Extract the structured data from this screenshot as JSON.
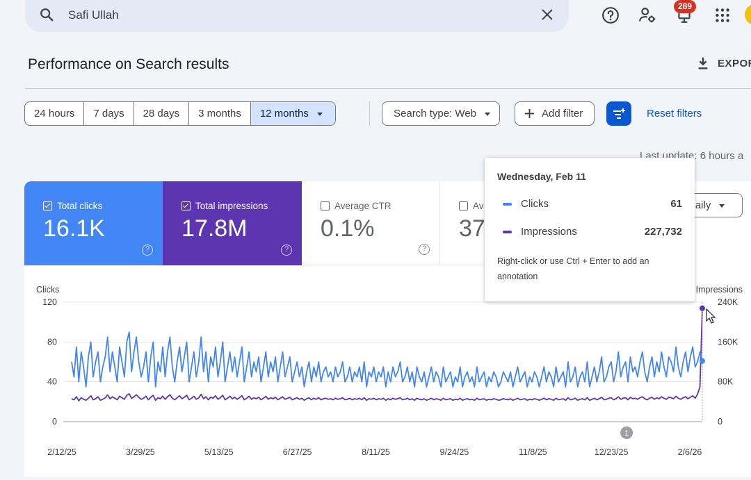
{
  "search": {
    "value": "Safi Ullah"
  },
  "notifications": {
    "count": "289"
  },
  "page": {
    "title": "Performance on Search results",
    "export_label": "EXPOR"
  },
  "ranges": [
    {
      "label": "24 hours"
    },
    {
      "label": "7 days"
    },
    {
      "label": "28 days"
    },
    {
      "label": "3 months"
    },
    {
      "label": "12 months"
    }
  ],
  "filters": {
    "search_type": "Search type: Web",
    "add_filter": "Add filter",
    "reset": "Reset filters"
  },
  "last_update": "Last update: 6 hours a",
  "metrics": [
    {
      "label": "Total clicks",
      "value": "16.1K",
      "checked": true
    },
    {
      "label": "Total impressions",
      "value": "17.8M",
      "checked": true
    },
    {
      "label": "Average CTR",
      "value": "0.1%",
      "checked": false
    },
    {
      "label": "Av",
      "value": "37.9",
      "checked": false
    }
  ],
  "granularity": "Daily",
  "tooltip": {
    "date": "Wednesday, Feb 11",
    "clicks_label": "Clicks",
    "clicks_value": "61",
    "impressions_label": "Impressions",
    "impressions_value": "227,732",
    "hint": "Right-click or use Ctrl + Enter to add an annotation"
  },
  "colors": {
    "clicks": "#4285f4",
    "impressions": "#5e35b1",
    "accent": "#0b57d0"
  },
  "chart_data": {
    "type": "line",
    "left_axis_label": "Clicks",
    "right_axis_label": "Impressions",
    "left_ticks": [
      "0",
      "40",
      "80",
      "120"
    ],
    "right_ticks": [
      "0",
      "80K",
      "160K",
      "240K"
    ],
    "left_ylim": [
      0,
      120
    ],
    "right_ylim": [
      0,
      240000
    ],
    "x_ticks": [
      "2/12/25",
      "3/29/25",
      "5/13/25",
      "6/27/25",
      "8/11/25",
      "9/24/25",
      "11/8/25",
      "12/23/25",
      "2/6/26"
    ],
    "grid": true,
    "annotation": {
      "label": "1",
      "date": "12/23/25"
    },
    "series": [
      {
        "name": "Clicks",
        "color": "#4285f4",
        "values": [
          60,
          45,
          75,
          40,
          70,
          55,
          35,
          65,
          80,
          45,
          60,
          70,
          40,
          55,
          65,
          85,
          50,
          70,
          55,
          40,
          75,
          60,
          45,
          80,
          90,
          50,
          70,
          85,
          60,
          45,
          55,
          70,
          40,
          65,
          80,
          35,
          60,
          50,
          75,
          45,
          70,
          85,
          55,
          40,
          60,
          75,
          50,
          65,
          80,
          40,
          55,
          70,
          45,
          60,
          85,
          50,
          70,
          40,
          65,
          55,
          75,
          45,
          60,
          80,
          40,
          55,
          70,
          50,
          65,
          45,
          60,
          75,
          40,
          55,
          70,
          45,
          60,
          50,
          65,
          40,
          55,
          70,
          45,
          60,
          50,
          65,
          40,
          55,
          70,
          45,
          55,
          65,
          40,
          50,
          60,
          45,
          55,
          35,
          50,
          60,
          40,
          55,
          45,
          60,
          40,
          50,
          55,
          45,
          50,
          40,
          55,
          45,
          50,
          60,
          40,
          45,
          55,
          40,
          50,
          45,
          55,
          40,
          60,
          35,
          50,
          45,
          55,
          40,
          50,
          45,
          55,
          35,
          50,
          40,
          55,
          45,
          50,
          60,
          40,
          45,
          55,
          40,
          50,
          35,
          55,
          45,
          40,
          50,
          35,
          45,
          55,
          40,
          50,
          45,
          35,
          55,
          40,
          45,
          50,
          35,
          45,
          40,
          55,
          35,
          45,
          50,
          40,
          45,
          35,
          55,
          40,
          45,
          50,
          35,
          45,
          40,
          50,
          45,
          35,
          40,
          50,
          45,
          40,
          50,
          35,
          45,
          55,
          40,
          45,
          50,
          35,
          45,
          40,
          50,
          45,
          35,
          45,
          55,
          40,
          50,
          45,
          35,
          55,
          40,
          45,
          50,
          35,
          60,
          40,
          45,
          55,
          35,
          45,
          50,
          40,
          60,
          35,
          45,
          55,
          40,
          50,
          65,
          40,
          45,
          55,
          60,
          40,
          50,
          70,
          45,
          55,
          60,
          40,
          65,
          50,
          55,
          45,
          60,
          70,
          50,
          40,
          55,
          65,
          45,
          60,
          50,
          70,
          55,
          45,
          65,
          60,
          50,
          75,
          55,
          45,
          60,
          70,
          50,
          65,
          75,
          55,
          60,
          70,
          61
        ]
      },
      {
        "name": "Impressions",
        "color": "#5e35b1",
        "values": [
          46000,
          44000,
          50000,
          42000,
          48000,
          45000,
          43000,
          47000,
          52000,
          44000,
          46000,
          50000,
          43000,
          45000,
          48000,
          54000,
          46000,
          50000,
          47000,
          44000,
          51000,
          48000,
          45000,
          53000,
          56000,
          47000,
          50000,
          54000,
          49000,
          45000,
          47000,
          51000,
          44000,
          49000,
          53000,
          43000,
          48000,
          46000,
          51000,
          45000,
          50000,
          54000,
          47000,
          44000,
          48000,
          52000,
          46000,
          49000,
          53000,
          44000,
          47000,
          51000,
          45000,
          48000,
          55000,
          46000,
          50000,
          44000,
          49000,
          47000,
          52000,
          45000,
          48000,
          53000,
          44000,
          47000,
          51000,
          46000,
          49000,
          45000,
          48000,
          52000,
          44000,
          47000,
          51000,
          45000,
          48000,
          46000,
          49000,
          44000,
          47000,
          51000,
          45000,
          48000,
          46000,
          49000,
          44000,
          47000,
          50000,
          45000,
          47000,
          49000,
          44000,
          46000,
          48000,
          45000,
          47000,
          43000,
          46000,
          48000,
          44000,
          47000,
          45000,
          48000,
          44000,
          46000,
          47000,
          45000,
          46000,
          44000,
          47000,
          45000,
          46000,
          48000,
          44000,
          45000,
          47000,
          44000,
          46000,
          45000,
          47000,
          44000,
          48000,
          43000,
          46000,
          45000,
          47000,
          44000,
          46000,
          45000,
          47000,
          43000,
          46000,
          44000,
          47000,
          45000,
          46000,
          48000,
          44000,
          45000,
          47000,
          44000,
          46000,
          43000,
          47000,
          45000,
          44000,
          46000,
          43000,
          45000,
          47000,
          44000,
          46000,
          45000,
          43000,
          47000,
          44000,
          45000,
          46000,
          43000,
          45000,
          44000,
          47000,
          43000,
          45000,
          46000,
          44000,
          45000,
          43000,
          47000,
          44000,
          45000,
          46000,
          43000,
          45000,
          44000,
          46000,
          45000,
          43000,
          44000,
          46000,
          45000,
          44000,
          46000,
          43000,
          45000,
          47000,
          44000,
          45000,
          46000,
          43000,
          45000,
          44000,
          46000,
          45000,
          43000,
          45000,
          47000,
          44000,
          46000,
          45000,
          43000,
          47000,
          44000,
          45000,
          46000,
          43000,
          48000,
          44000,
          45000,
          47000,
          43000,
          45000,
          46000,
          44000,
          48000,
          43000,
          45000,
          47000,
          44000,
          46000,
          49000,
          44000,
          45000,
          47000,
          48000,
          44000,
          46000,
          50000,
          45000,
          47000,
          48000,
          44000,
          49000,
          46000,
          47000,
          45000,
          48000,
          50000,
          46000,
          44000,
          47000,
          49000,
          45000,
          48000,
          46000,
          50000,
          47000,
          45000,
          49000,
          48000,
          46000,
          51000,
          47000,
          45000,
          48000,
          50000,
          46000,
          49000,
          52000,
          47000,
          55000,
          70000,
          227732
        ]
      }
    ]
  }
}
